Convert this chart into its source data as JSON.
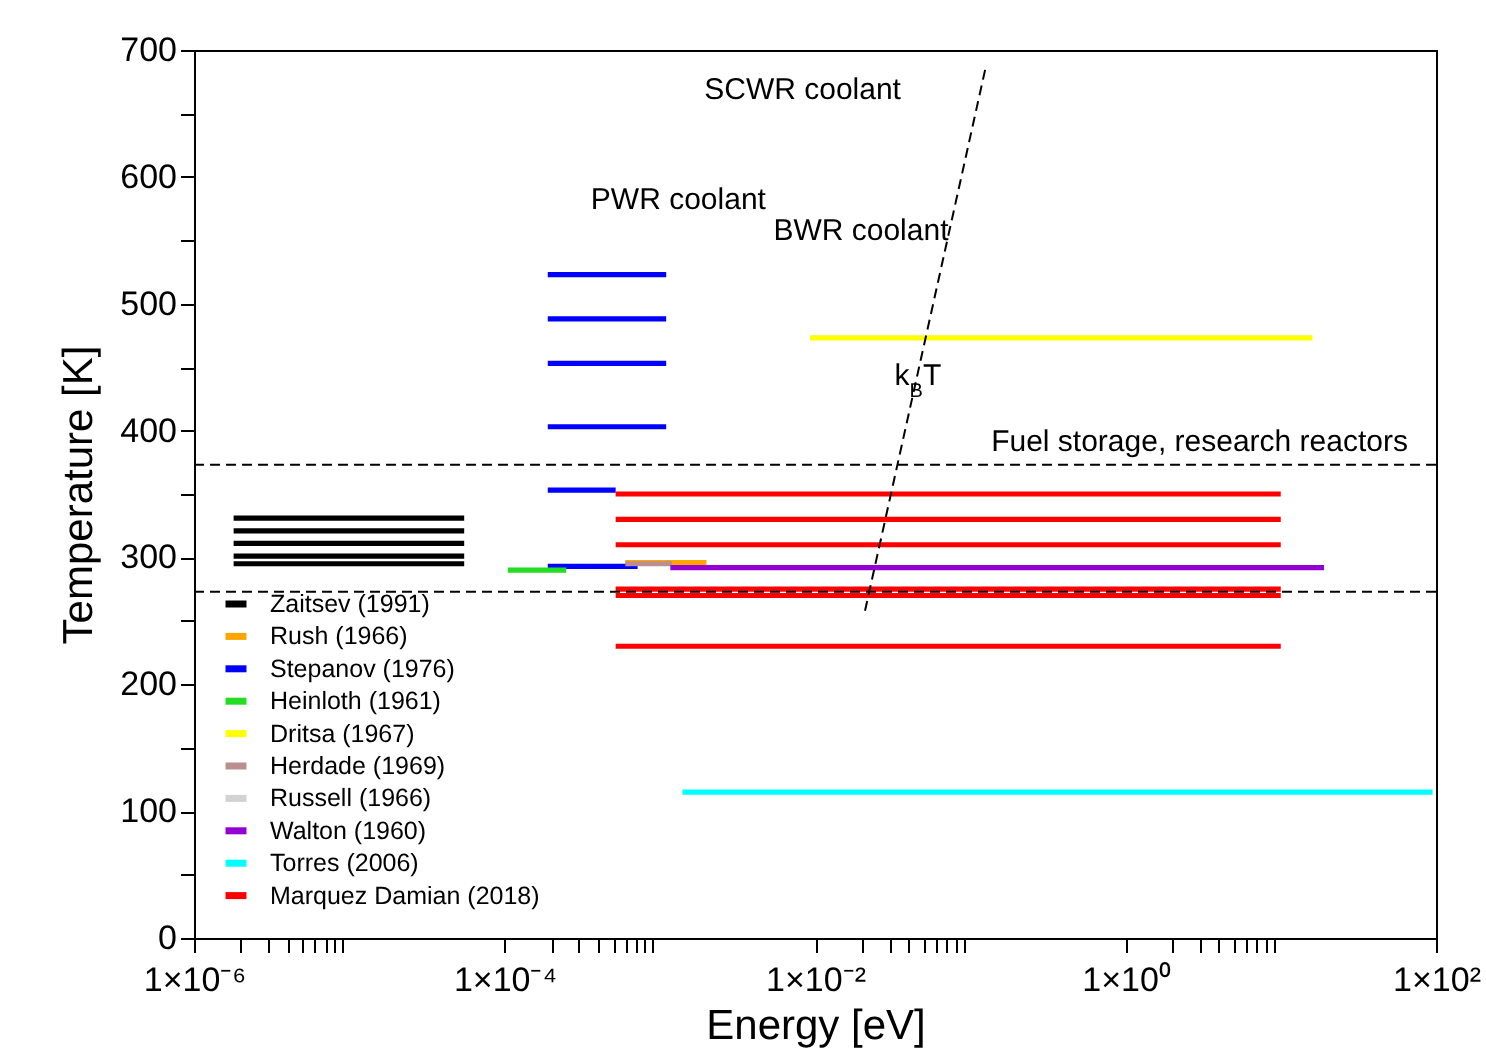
{
  "chart_data": {
    "type": "line",
    "xlabel": "Energy [eV]",
    "ylabel": "Temperature [K]",
    "log": "x",
    "grid": false,
    "legend": "bottom left",
    "line_style": "solid",
    "marker": "none",
    "xlim": [
      1e-06,
      100
    ],
    "ylim": [
      0,
      700
    ],
    "xticks": [
      {
        "value": 1e-06,
        "label": "1×10⁻⁶"
      },
      {
        "value": 2e-06,
        "label": null
      },
      {
        "value": 3e-06,
        "label": null
      },
      {
        "value": 4e-06,
        "label": null
      },
      {
        "value": 5e-06,
        "label": null
      },
      {
        "value": 6e-06,
        "label": null
      },
      {
        "value": 7e-06,
        "label": null
      },
      {
        "value": 8e-06,
        "label": null
      },
      {
        "value": 9e-06,
        "label": null
      },
      {
        "value": 0.0001,
        "label": "1×10⁻⁴"
      },
      {
        "value": 0.0002,
        "label": null
      },
      {
        "value": 0.0003,
        "label": null
      },
      {
        "value": 0.0004,
        "label": null
      },
      {
        "value": 0.0005,
        "label": null
      },
      {
        "value": 0.0006,
        "label": null
      },
      {
        "value": 0.0007,
        "label": null
      },
      {
        "value": 0.0008,
        "label": null
      },
      {
        "value": 0.0009,
        "label": null
      },
      {
        "value": 0.01,
        "label": "1×10⁻²"
      },
      {
        "value": 0.02,
        "label": null
      },
      {
        "value": 0.03,
        "label": null
      },
      {
        "value": 0.04,
        "label": null
      },
      {
        "value": 0.05,
        "label": null
      },
      {
        "value": 0.06,
        "label": null
      },
      {
        "value": 0.07,
        "label": null
      },
      {
        "value": 0.08,
        "label": null
      },
      {
        "value": 0.09,
        "label": null
      },
      {
        "value": 1,
        "label": "1×10⁰"
      },
      {
        "value": 2,
        "label": null
      },
      {
        "value": 3,
        "label": null
      },
      {
        "value": 4,
        "label": null
      },
      {
        "value": 5,
        "label": null
      },
      {
        "value": 6,
        "label": null
      },
      {
        "value": 7,
        "label": null
      },
      {
        "value": 8,
        "label": null
      },
      {
        "value": 9,
        "label": null
      },
      {
        "value": 100,
        "label": "1×10²"
      }
    ],
    "yticks": [
      0,
      {
        "value": 50,
        "label": null
      },
      100,
      {
        "value": 150,
        "label": null
      },
      200,
      {
        "value": 250,
        "label": null
      },
      300,
      {
        "value": 350,
        "label": null
      },
      400,
      {
        "value": 450,
        "label": null
      },
      500,
      {
        "value": 550,
        "label": null
      },
      600,
      {
        "value": 650,
        "label": null
      },
      700
    ],
    "series": [
      {
        "name": "Zaitsev (1991)",
        "color": "#000000",
        "x": [
          1.8e-06,
          5.5e-05
        ],
        "values": [
          331,
          331
        ]
      },
      {
        "color": "#000000",
        "x": [
          1.8e-06,
          5.5e-05
        ],
        "values": [
          321,
          321
        ]
      },
      {
        "color": "#000000",
        "x": [
          1.8e-06,
          5.5e-05
        ],
        "values": [
          311,
          311
        ]
      },
      {
        "color": "#000000",
        "x": [
          1.8e-06,
          5.5e-05
        ],
        "values": [
          301,
          301
        ]
      },
      {
        "color": "#000000",
        "x": [
          1.8e-06,
          5.5e-05
        ],
        "values": [
          295,
          295
        ]
      },
      {
        "name": "Rush (1966)",
        "color": "#ffa500",
        "x": [
          0.0006,
          0.002
        ],
        "values": [
          296,
          296
        ]
      },
      {
        "name": "Stepanov (1976)",
        "color": "#0000ff",
        "x": [
          0.00019,
          0.0011
        ],
        "values": [
          523,
          523
        ]
      },
      {
        "color": "#0000ff",
        "x": [
          0.00019,
          0.0011
        ],
        "values": [
          488,
          488
        ]
      },
      {
        "color": "#0000ff",
        "x": [
          0.00019,
          0.0011
        ],
        "values": [
          453,
          453
        ]
      },
      {
        "color": "#0000ff",
        "x": [
          0.00019,
          0.0011
        ],
        "values": [
          403,
          403
        ]
      },
      {
        "color": "#0000ff",
        "x": [
          0.00019,
          0.00052
        ],
        "values": [
          353,
          353
        ]
      },
      {
        "color": "#0000ff",
        "x": [
          0.00019,
          0.00072
        ],
        "values": [
          293,
          293
        ]
      },
      {
        "name": "Heinloth (1961)",
        "color": "#22dd22",
        "x": [
          0.000105,
          0.00025
        ],
        "values": [
          290,
          290
        ]
      },
      {
        "name": "Dritsa (1967)",
        "color": "#ffff00",
        "x": [
          0.0093,
          16
        ],
        "values": [
          473,
          473
        ]
      },
      {
        "name": "Herdade (1969)",
        "color": "#bc8f8f",
        "x": [
          0.0006,
          0.0012
        ],
        "values": [
          295,
          295
        ]
      },
      {
        "name": "Russell (1966)",
        "color": "#d3d3d3",
        "values": [
          null,
          null
        ]
      },
      {
        "name": "Walton (1960)",
        "color": "#9400d3",
        "x": [
          0.00117,
          19
        ],
        "values": [
          292,
          292
        ]
      },
      {
        "name": "Torres (2006)",
        "color": "#00ffff",
        "x": [
          0.0014,
          95
        ],
        "values": [
          115,
          115
        ]
      },
      {
        "name": "Marquez Damian (2018)",
        "color": "#ff0000",
        "x": [
          0.00052,
          10
        ],
        "values": [
          350,
          350
        ]
      },
      {
        "color": "#ff0000",
        "x": [
          0.00052,
          10
        ],
        "values": [
          330,
          330
        ]
      },
      {
        "color": "#ff0000",
        "x": [
          0.00052,
          10
        ],
        "values": [
          310,
          310
        ]
      },
      {
        "color": "#ff0000",
        "x": [
          0.00052,
          10
        ],
        "values": [
          275,
          275
        ]
      },
      {
        "color": "#ff0000",
        "x": [
          0.00052,
          10
        ],
        "values": [
          270,
          270
        ]
      },
      {
        "color": "#ff0000",
        "x": [
          0.00052,
          10
        ],
        "values": [
          230,
          230
        ]
      },
      {
        "color": "#000000",
        "line_style": "dashed",
        "x": [
          0.021,
          0.125
        ],
        "values": [
          258,
          685
        ]
      }
    ],
    "ref_lines": [
      {
        "axis": "y",
        "value": 373,
        "label": "Fuel storage, research reactors",
        "color": "#000000",
        "line_style": "dashed"
      },
      {
        "axis": "y",
        "value": 273,
        "color": "#000000",
        "line_style": "dashed"
      }
    ],
    "annotations": [
      "SCWR coolant",
      "PWR coolant",
      "BWR coolant",
      {
        "text": "k$_{B}$T",
        "x": 0.046,
        "y": 444
      }
    ]
  }
}
